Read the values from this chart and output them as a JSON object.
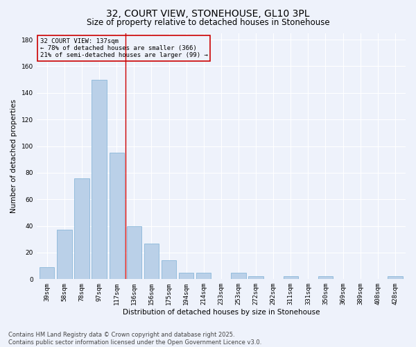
{
  "title1": "32, COURT VIEW, STONEHOUSE, GL10 3PL",
  "title2": "Size of property relative to detached houses in Stonehouse",
  "xlabel": "Distribution of detached houses by size in Stonehouse",
  "ylabel": "Number of detached properties",
  "annotation_line1": "32 COURT VIEW: 137sqm",
  "annotation_line2": "← 78% of detached houses are smaller (366)",
  "annotation_line3": "21% of semi-detached houses are larger (99) →",
  "footnote1": "Contains HM Land Registry data © Crown copyright and database right 2025.",
  "footnote2": "Contains public sector information licensed under the Open Government Licence v3.0.",
  "categories": [
    "39sqm",
    "58sqm",
    "78sqm",
    "97sqm",
    "117sqm",
    "136sqm",
    "156sqm",
    "175sqm",
    "194sqm",
    "214sqm",
    "233sqm",
    "253sqm",
    "272sqm",
    "292sqm",
    "311sqm",
    "331sqm",
    "350sqm",
    "369sqm",
    "389sqm",
    "408sqm",
    "428sqm"
  ],
  "values": [
    9,
    37,
    76,
    150,
    95,
    40,
    27,
    14,
    5,
    5,
    0,
    5,
    2,
    0,
    2,
    0,
    2,
    0,
    0,
    0,
    2
  ],
  "bar_color": "#bad0e8",
  "bar_edge_color": "#7aafd4",
  "vline_x": 4.5,
  "vline_color": "#cc0000",
  "annotation_box_color": "#cc0000",
  "ylim": [
    0,
    185
  ],
  "yticks": [
    0,
    20,
    40,
    60,
    80,
    100,
    120,
    140,
    160,
    180
  ],
  "background_color": "#eef2fb",
  "grid_color": "#ffffff",
  "title_fontsize": 10,
  "subtitle_fontsize": 8.5,
  "axis_label_fontsize": 7.5,
  "tick_fontsize": 6.5,
  "annotation_fontsize": 6.5,
  "footnote_fontsize": 6.0
}
